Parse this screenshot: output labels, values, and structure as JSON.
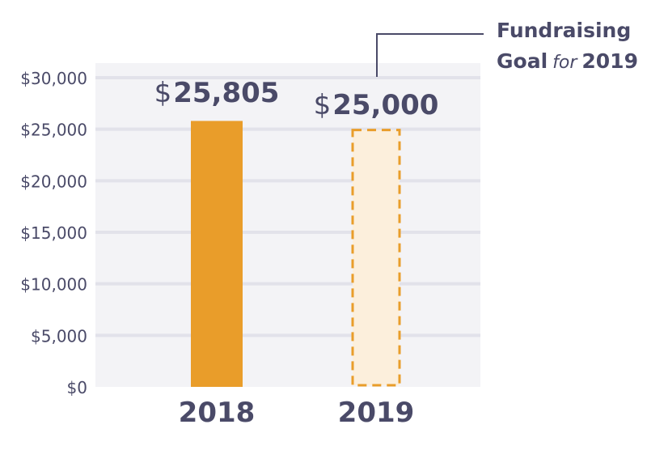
{
  "chart_data": {
    "type": "bar",
    "categories": [
      "2018",
      "2019"
    ],
    "values": [
      25805,
      25000
    ],
    "value_labels": [
      {
        "currency": "$",
        "number": "25,805"
      },
      {
        "currency": "$",
        "number": "25,000"
      }
    ],
    "bar_styles": [
      "solid",
      "dashed-outline"
    ],
    "ylim": [
      0,
      30000
    ],
    "yticks": [
      0,
      5000,
      10000,
      15000,
      20000,
      25000,
      30000
    ],
    "ytick_labels": [
      "$0",
      "$5,000",
      "$10,000",
      "$15,000",
      "$20,000",
      "$25,000",
      "$30,000"
    ],
    "grid": true,
    "title": "",
    "xlabel": "",
    "ylabel": ""
  },
  "annotation": {
    "line1": "Fundraising",
    "line2_part1": "Goal",
    "line2_part2": "for",
    "line2_part3": "2019"
  },
  "colors": {
    "plot_bg": "#f3f3f6",
    "grid": "#e2e2ea",
    "bar_fill": "#e99d2a",
    "goal_fill": "#fcefdc",
    "goal_stroke": "#e99d2a",
    "text": "#4a4a68",
    "leader": "#4a4a68"
  }
}
